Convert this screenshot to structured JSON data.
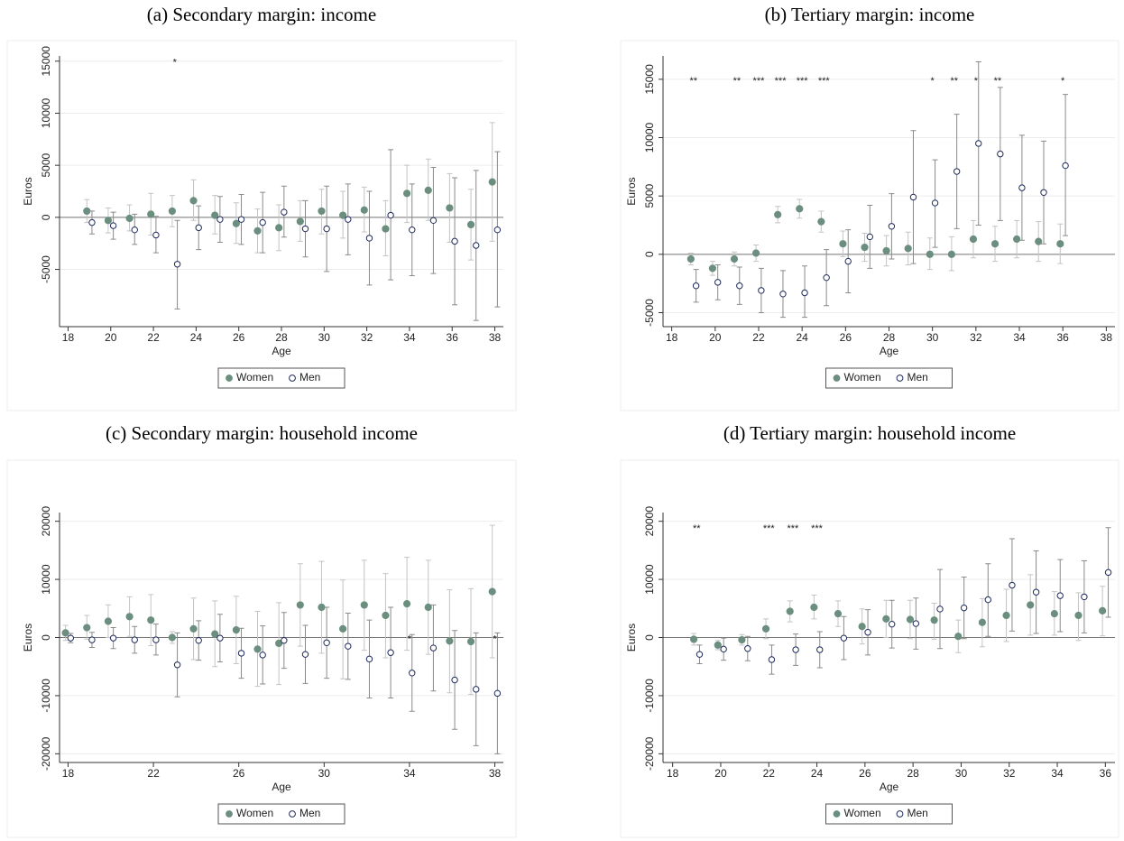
{
  "chart_data": [
    {
      "type": "errorbar",
      "title": "(a) Secondary margin: income",
      "xlabel": "Age",
      "ylabel": "Euros",
      "xlim": [
        17.6,
        38.4
      ],
      "xticks": [
        18,
        20,
        22,
        24,
        26,
        28,
        30,
        32,
        34,
        36,
        38
      ],
      "ylim": [
        -10500,
        15500
      ],
      "yticks": [
        -5000,
        0,
        5000,
        10000,
        15000
      ],
      "grid": true,
      "reference_line": 0,
      "legend_position": "bottom",
      "series": [
        {
          "name": "Women",
          "color": "#6b8e7f",
          "ci_color": "#c4c4c4",
          "marker": "filled",
          "x": [
            19,
            20,
            21,
            22,
            23,
            24,
            25,
            26,
            27,
            28,
            29,
            30,
            31,
            32,
            33,
            34,
            35,
            36,
            37,
            38
          ],
          "values": [
            600,
            -300,
            -100,
            300,
            600,
            1600,
            200,
            -600,
            -1300,
            -1000,
            -400,
            600,
            200,
            700,
            -1100,
            2300,
            2600,
            900,
            -700,
            3400
          ],
          "lower": [
            -500,
            -1500,
            -1300,
            -1700,
            -900,
            -300,
            -1600,
            -2500,
            -3400,
            -3200,
            -2300,
            -1600,
            -2000,
            -1400,
            -3700,
            -500,
            -300,
            -2400,
            -4100,
            -2300
          ],
          "upper": [
            1700,
            900,
            1200,
            2300,
            2100,
            3600,
            2100,
            1400,
            800,
            1200,
            1600,
            2700,
            2500,
            2900,
            1600,
            5000,
            5600,
            4200,
            2700,
            9100
          ]
        },
        {
          "name": "Men",
          "color": "#1f2a5c",
          "ci_color": "#8a8a8a",
          "marker": "hollow",
          "x": [
            19,
            20,
            21,
            22,
            23,
            24,
            25,
            26,
            27,
            28,
            29,
            30,
            31,
            32,
            33,
            34,
            35,
            36,
            37,
            38
          ],
          "values": [
            -500,
            -800,
            -1200,
            -1700,
            -4500,
            -1000,
            -200,
            -200,
            -500,
            500,
            -1100,
            -1100,
            -200,
            -2000,
            200,
            -1200,
            -300,
            -2300,
            -2700,
            -1200
          ],
          "lower": [
            -1600,
            -2100,
            -2600,
            -3400,
            -8800,
            -3100,
            -2400,
            -2600,
            -3400,
            -1900,
            -3800,
            -5200,
            -3600,
            -6500,
            -6000,
            -5600,
            -5400,
            -8400,
            -9900,
            -8600
          ],
          "upper": [
            600,
            500,
            300,
            100,
            -300,
            1100,
            2000,
            2200,
            2400,
            3000,
            1600,
            3000,
            3200,
            2500,
            6500,
            3200,
            4800,
            3800,
            4500,
            6300
          ]
        }
      ],
      "annotations": {
        "y": 15000,
        "x": [
          23
        ],
        "labels": [
          "*"
        ]
      }
    },
    {
      "type": "errorbar",
      "title": "(b) Tertiary margin: income",
      "xlabel": "Age",
      "ylabel": "Euros",
      "xlim": [
        17.6,
        38.4
      ],
      "xticks": [
        18,
        20,
        22,
        24,
        26,
        28,
        30,
        32,
        34,
        36,
        38
      ],
      "ylim": [
        -6200,
        17000
      ],
      "yticks": [
        -5000,
        0,
        5000,
        10000,
        15000
      ],
      "grid": true,
      "reference_line": 0,
      "legend_position": "bottom",
      "series": [
        {
          "name": "Women",
          "color": "#6b8e7f",
          "ci_color": "#c4c4c4",
          "marker": "filled",
          "x": [
            19,
            20,
            21,
            22,
            23,
            24,
            25,
            26,
            27,
            28,
            29,
            30,
            31,
            32,
            33,
            34,
            35,
            36
          ],
          "values": [
            -400,
            -1200,
            -400,
            100,
            3400,
            3900,
            2800,
            900,
            600,
            300,
            500,
            0,
            0,
            1300,
            900,
            1300,
            1100,
            900
          ],
          "lower": [
            -900,
            -1800,
            -1000,
            -600,
            2700,
            3100,
            1900,
            -200,
            -600,
            -1000,
            -900,
            -1300,
            -1400,
            -300,
            -600,
            -300,
            -600,
            -800
          ],
          "upper": [
            100,
            -600,
            200,
            800,
            4100,
            4700,
            3700,
            2000,
            1800,
            1600,
            1900,
            1400,
            1500,
            2900,
            2400,
            2900,
            2800,
            2600
          ]
        },
        {
          "name": "Men",
          "color": "#1f2a5c",
          "ci_color": "#8a8a8a",
          "marker": "hollow",
          "x": [
            19,
            20,
            21,
            22,
            23,
            24,
            25,
            26,
            27,
            28,
            29,
            30,
            31,
            32,
            33,
            34,
            35,
            36
          ],
          "values": [
            -2700,
            -2400,
            -2700,
            -3100,
            -3400,
            -3300,
            -2000,
            -600,
            1500,
            2400,
            4900,
            4400,
            7100,
            9500,
            8600,
            5700,
            5300,
            7600
          ],
          "lower": [
            -4100,
            -3900,
            -4300,
            -5000,
            -5400,
            -5400,
            -4400,
            -3300,
            -1200,
            -400,
            -800,
            600,
            2200,
            2500,
            2900,
            1200,
            900,
            1600
          ],
          "upper": [
            -1300,
            -900,
            -1100,
            -1200,
            -1400,
            -1000,
            400,
            2100,
            4200,
            5200,
            10600,
            8100,
            12000,
            16500,
            14300,
            10200,
            9700,
            13700
          ]
        }
      ],
      "annotations": {
        "y": 15000,
        "x": [
          19,
          21,
          22,
          23,
          24,
          25,
          30,
          31,
          32,
          33,
          36
        ],
        "labels": [
          "**",
          "**",
          "***",
          "***",
          "***",
          "***",
          "*",
          "**",
          "*",
          "**",
          "*"
        ]
      }
    },
    {
      "type": "errorbar",
      "title": "(c) Secondary margin: household income",
      "xlabel": "Age",
      "ylabel": "Euros",
      "xlim": [
        17.6,
        38.4
      ],
      "xticks": [
        18,
        22,
        26,
        30,
        34,
        38
      ],
      "ylim": [
        -21500,
        21500
      ],
      "yticks": [
        -20000,
        -10000,
        0,
        10000,
        20000
      ],
      "grid": true,
      "reference_line": 0,
      "legend_position": "bottom",
      "series": [
        {
          "name": "Women",
          "color": "#6b8e7f",
          "ci_color": "#c4c4c4",
          "marker": "filled",
          "x": [
            18,
            19,
            20,
            21,
            22,
            23,
            24,
            25,
            26,
            27,
            28,
            29,
            30,
            31,
            32,
            33,
            34,
            35,
            36,
            37,
            38
          ],
          "values": [
            800,
            1700,
            2800,
            3600,
            3000,
            0,
            1500,
            600,
            1300,
            -2000,
            -1000,
            5600,
            5200,
            1500,
            5600,
            3800,
            5800,
            5200,
            -600,
            -700,
            7900
          ],
          "lower": [
            -500,
            -300,
            0,
            200,
            -1400,
            -1000,
            -3800,
            -5000,
            -4500,
            -8400,
            -8100,
            -1500,
            -2700,
            -7100,
            -2200,
            -3500,
            -2200,
            -2900,
            -9500,
            -9800,
            -3500
          ],
          "upper": [
            2100,
            3800,
            5600,
            7000,
            7400,
            1000,
            6800,
            6300,
            7100,
            4500,
            6000,
            12700,
            13100,
            9900,
            13300,
            11000,
            13800,
            13300,
            8200,
            8400,
            19300
          ]
        },
        {
          "name": "Men",
          "color": "#1f2a5c",
          "ci_color": "#8a8a8a",
          "marker": "hollow",
          "x": [
            18,
            19,
            20,
            21,
            22,
            23,
            24,
            25,
            26,
            27,
            28,
            29,
            30,
            31,
            32,
            33,
            34,
            35,
            36,
            37,
            38
          ],
          "values": [
            -100,
            -400,
            -100,
            -400,
            -400,
            -4700,
            -500,
            -100,
            -2700,
            -3000,
            -500,
            -2900,
            -900,
            -1500,
            -3700,
            -2600,
            -6100,
            -1800,
            -7300,
            -8900,
            -9600
          ],
          "lower": [
            -900,
            -1700,
            -1900,
            -2700,
            -3000,
            -10200,
            -3900,
            -4200,
            -7000,
            -8000,
            -5300,
            -7900,
            -7000,
            -7200,
            -10400,
            -10400,
            -12700,
            -9200,
            -15800,
            -18600,
            -20000
          ],
          "upper": [
            700,
            900,
            1700,
            1900,
            2300,
            800,
            2900,
            4000,
            1600,
            2000,
            4300,
            2100,
            5200,
            4200,
            3000,
            5200,
            500,
            5600,
            1200,
            800,
            800
          ]
        }
      ],
      "annotations": {
        "y": 0,
        "x": [
          34,
          38
        ],
        "labels": [
          "*",
          "*"
        ]
      }
    },
    {
      "type": "errorbar",
      "title": "(d) Tertiary margin: household income",
      "xlabel": "Age",
      "ylabel": "Euros",
      "xlim": [
        17.6,
        36.4
      ],
      "xticks": [
        18,
        20,
        22,
        24,
        26,
        28,
        30,
        32,
        34,
        36
      ],
      "ylim": [
        -21500,
        21500
      ],
      "yticks": [
        -20000,
        -10000,
        0,
        10000,
        20000
      ],
      "grid": true,
      "reference_line": 0,
      "legend_position": "bottom",
      "series": [
        {
          "name": "Women",
          "color": "#6b8e7f",
          "ci_color": "#c4c4c4",
          "marker": "filled",
          "x": [
            19,
            20,
            21,
            22,
            23,
            24,
            25,
            26,
            27,
            28,
            29,
            30,
            31,
            32,
            33,
            34,
            35,
            36
          ],
          "values": [
            -300,
            -1300,
            -400,
            1500,
            4500,
            5200,
            4100,
            1900,
            3200,
            3100,
            3000,
            200,
            2600,
            3800,
            5600,
            4100,
            3800,
            4600
          ],
          "lower": [
            -1300,
            -2100,
            -1300,
            -200,
            2700,
            3200,
            1900,
            -1100,
            0,
            -200,
            -300,
            -2600,
            -1600,
            -700,
            400,
            400,
            -500,
            300
          ],
          "upper": [
            700,
            -500,
            500,
            3200,
            6300,
            7300,
            6300,
            4900,
            6400,
            6400,
            5900,
            3000,
            6700,
            8300,
            10800,
            7900,
            7700,
            8800
          ]
        },
        {
          "name": "Men",
          "color": "#1f2a5c",
          "ci_color": "#8a8a8a",
          "marker": "hollow",
          "x": [
            19,
            20,
            21,
            22,
            23,
            24,
            25,
            26,
            27,
            28,
            29,
            30,
            31,
            32,
            33,
            34,
            35,
            36
          ],
          "values": [
            -2900,
            -2000,
            -1900,
            -3800,
            -2100,
            -2100,
            -100,
            900,
            2300,
            2400,
            4900,
            5100,
            6500,
            9000,
            7800,
            7200,
            7000,
            11200
          ],
          "lower": [
            -4500,
            -3900,
            -4000,
            -6300,
            -4800,
            -5200,
            -3800,
            -3000,
            -1800,
            -2000,
            -1900,
            -200,
            200,
            1100,
            700,
            1000,
            800,
            3500
          ],
          "upper": [
            -1300,
            -100,
            200,
            -1300,
            600,
            1000,
            3600,
            4800,
            6400,
            6800,
            11700,
            10400,
            12700,
            17000,
            14900,
            13400,
            13200,
            18900
          ]
        }
      ],
      "annotations": {
        "y": 19000,
        "x": [
          19,
          22,
          23,
          24
        ],
        "labels": [
          "**",
          "***",
          "***",
          "***"
        ]
      }
    }
  ]
}
